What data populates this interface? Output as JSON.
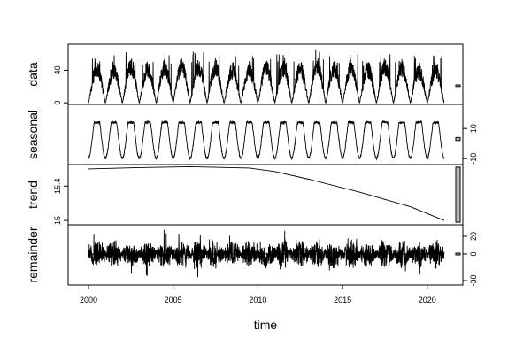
{
  "chart_data": {
    "type": "line",
    "xlabel": "time",
    "xlim": [
      1998.8,
      2022.1
    ],
    "x_ticks": [
      2000,
      2005,
      2010,
      2015,
      2020
    ],
    "x_start": 2000.0,
    "x_end": 2021.0,
    "panels": [
      {
        "name": "data",
        "ylabel": "data",
        "ylim": [
          -2,
          72
        ],
        "y_ticks": [
          0,
          40
        ],
        "y_tick_side": "left",
        "range_bar": {
          "from": 20,
          "to": 22
        },
        "annual_peaks": [
          {
            "x": 2000.5,
            "y": 58
          },
          {
            "x": 2001.5,
            "y": 56
          },
          {
            "x": 2002.5,
            "y": 61
          },
          {
            "x": 2003.5,
            "y": 57
          },
          {
            "x": 2004.5,
            "y": 59
          },
          {
            "x": 2005.5,
            "y": 62
          },
          {
            "x": 2006.5,
            "y": 60
          },
          {
            "x": 2007.5,
            "y": 60
          },
          {
            "x": 2008.5,
            "y": 55
          },
          {
            "x": 2009.5,
            "y": 56
          },
          {
            "x": 2010.5,
            "y": 58
          },
          {
            "x": 2011.5,
            "y": 59
          },
          {
            "x": 2012.5,
            "y": 57
          },
          {
            "x": 2013.5,
            "y": 63
          },
          {
            "x": 2014.5,
            "y": 58
          },
          {
            "x": 2015.5,
            "y": 60
          },
          {
            "x": 2016.5,
            "y": 56
          },
          {
            "x": 2017.5,
            "y": 59
          },
          {
            "x": 2018.5,
            "y": 57
          },
          {
            "x": 2019.5,
            "y": 55
          },
          {
            "x": 2020.5,
            "y": 56
          }
        ]
      },
      {
        "name": "seasonal",
        "ylabel": "seasonal",
        "ylim": [
          -14,
          26
        ],
        "y_ticks": [
          -10,
          10
        ],
        "y_tick_side": "right",
        "range_bar": {
          "from": 2,
          "to": 4
        },
        "amplitude": 22,
        "offset": 3
      },
      {
        "name": "trend",
        "ylabel": "trend",
        "ylim": [
          14.95,
          15.65
        ],
        "y_ticks": [
          15.0,
          15.4
        ],
        "y_tick_side": "left",
        "range_bar": {
          "from": 14.98,
          "to": 15.62
        },
        "values": [
          {
            "x": 2000.0,
            "y": 15.6
          },
          {
            "x": 2003.0,
            "y": 15.615
          },
          {
            "x": 2006.0,
            "y": 15.625
          },
          {
            "x": 2009.5,
            "y": 15.61
          },
          {
            "x": 2011.0,
            "y": 15.57
          },
          {
            "x": 2013.0,
            "y": 15.48
          },
          {
            "x": 2016.0,
            "y": 15.33
          },
          {
            "x": 2019.0,
            "y": 15.16
          },
          {
            "x": 2021.0,
            "y": 15.0
          }
        ]
      },
      {
        "name": "remainder",
        "ylabel": "remainder",
        "ylim": [
          -35,
          33
        ],
        "y_ticks": [
          -30,
          0,
          20
        ],
        "y_tick_side": "right",
        "range_bar": {
          "from": -1,
          "to": 1
        }
      }
    ]
  }
}
